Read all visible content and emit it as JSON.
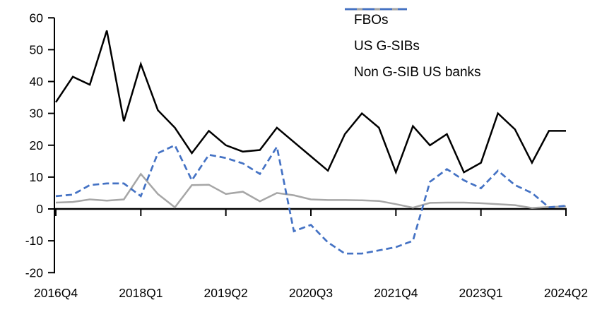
{
  "chart_data": {
    "type": "line",
    "title": "",
    "xlabel": "",
    "ylabel": "",
    "grid": "off",
    "legend_position": "top-right",
    "ylim": [
      -20,
      60
    ],
    "ytick_step": 10,
    "ytick_labels": [
      "60",
      "50",
      "40",
      "30",
      "20",
      "10",
      "0",
      "-10",
      "-20"
    ],
    "xtick_labels_shown": [
      "2016Q4",
      "2018Q1",
      "2019Q2",
      "2020Q3",
      "2021Q4",
      "2023Q1",
      "2024Q2"
    ],
    "categories": [
      "2016Q4",
      "2017Q1",
      "2017Q2",
      "2017Q3",
      "2017Q4",
      "2018Q1",
      "2018Q2",
      "2018Q3",
      "2018Q4",
      "2019Q1",
      "2019Q2",
      "2019Q3",
      "2019Q4",
      "2020Q1",
      "2020Q2",
      "2020Q3",
      "2020Q4",
      "2021Q1",
      "2021Q2",
      "2021Q3",
      "2021Q4",
      "2022Q1",
      "2022Q2",
      "2022Q3",
      "2022Q4",
      "2023Q1",
      "2023Q2",
      "2023Q3",
      "2023Q4",
      "2024Q1",
      "2024Q2"
    ],
    "series": [
      {
        "name": "FBOs",
        "color": "#000000",
        "style": "solid",
        "values": [
          33.5,
          41.5,
          39,
          56,
          27.5,
          45.5,
          31,
          25.5,
          17.5,
          24.5,
          20,
          18,
          18.5,
          25.5,
          21,
          16.5,
          12,
          23.5,
          30,
          25.5,
          11.5,
          26,
          20,
          23.5,
          11.5,
          14.5,
          30,
          25,
          14.5,
          24.5,
          24.5
        ]
      },
      {
        "name": "US G-SIBs",
        "color": "#A6A6A6",
        "style": "solid",
        "values": [
          2,
          2.2,
          3,
          2.6,
          3,
          11,
          4.7,
          0.5,
          7.5,
          7.6,
          4.7,
          5.4,
          2.4,
          5,
          4.3,
          3,
          2.8,
          2.8,
          2.7,
          2.5,
          1.5,
          0.4,
          1.9,
          2,
          2,
          1.8,
          1.5,
          1.2,
          0.3,
          0.6,
          0.8
        ]
      },
      {
        "name": "Non G-SIB US banks",
        "color": "#4472C4",
        "style": "dashed",
        "values": [
          4,
          4.5,
          7.5,
          8,
          8,
          4,
          17.5,
          20,
          9,
          17,
          16,
          14.3,
          11,
          19.5,
          -7,
          -5,
          -10.5,
          -14,
          -14,
          -13,
          -12,
          -10,
          8.5,
          12.5,
          9,
          6.5,
          12,
          7.5,
          5,
          0.5,
          1
        ]
      }
    ]
  },
  "axis_colors": {
    "axis": "#000000",
    "tick_label": "#000000"
  }
}
